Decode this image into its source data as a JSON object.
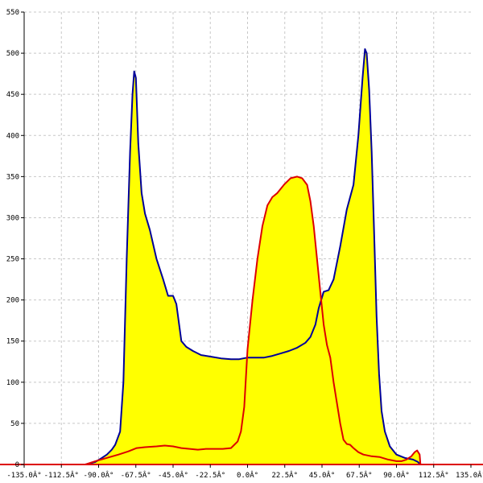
{
  "chart_data": {
    "type": "area",
    "xlim": [
      -135,
      135
    ],
    "ylim": [
      0,
      550
    ],
    "grid": true,
    "x_ticks": [
      -135,
      -112.5,
      -90,
      -67.5,
      -45,
      -22.5,
      0,
      22.5,
      45,
      67.5,
      90,
      112.5,
      135
    ],
    "x_tick_labels": [
      "-135.0Â°",
      "-112.5Â°",
      "-90.0Â°",
      "-67.5Â°",
      "-45.0Â°",
      "-22.5Â°",
      "0.0Â°",
      "22.5Â°",
      "45.0Â°",
      "67.5Â°",
      "90.0Â°",
      "112.5Â°",
      "135.0Â°"
    ],
    "y_ticks": [
      0,
      50,
      100,
      150,
      200,
      250,
      300,
      350,
      400,
      450,
      500,
      550
    ],
    "y_tick_labels": [
      "0",
      "50",
      "100",
      "150",
      "200",
      "250",
      "300",
      "350",
      "400",
      "450",
      "500",
      "550"
    ],
    "fill_color": "#ffff00",
    "series": [
      {
        "color": "#000099",
        "x": [
          -98,
          -92,
          -88,
          -85,
          -82,
          -80,
          -77,
          -75,
          -73,
          -71,
          -69.5,
          -68.5,
          -67.5,
          -66,
          -64,
          -62,
          -59,
          -55,
          -51,
          -48,
          -45,
          -43,
          -40,
          -37,
          -33,
          -28,
          -22,
          -16,
          -10,
          -5,
          0,
          5,
          10,
          15,
          20,
          25,
          30,
          35,
          38,
          41,
          43,
          46,
          49,
          52,
          56,
          60,
          64,
          67,
          69.5,
          71,
          72,
          73.5,
          75,
          76.5,
          78,
          79.5,
          81,
          83,
          86,
          90,
          95,
          100,
          103,
          104.5
        ],
        "y": [
          0,
          3,
          8,
          12,
          18,
          24,
          40,
          100,
          250,
          380,
          450,
          478,
          470,
          390,
          330,
          305,
          285,
          250,
          225,
          205,
          205,
          195,
          150,
          143,
          138,
          133,
          131,
          129,
          128,
          128,
          130,
          130,
          130,
          132,
          135,
          138,
          142,
          148,
          155,
          170,
          190,
          210,
          212,
          225,
          265,
          310,
          340,
          400,
          470,
          505,
          500,
          455,
          380,
          280,
          180,
          110,
          65,
          40,
          22,
          12,
          8,
          6,
          3,
          0
        ]
      },
      {
        "color": "#dd0000",
        "x": [
          -98,
          -92,
          -85,
          -78,
          -72,
          -67,
          -62,
          -55,
          -50,
          -45,
          -40,
          -35,
          -30,
          -25,
          -20,
          -15,
          -10,
          -8,
          -6,
          -4,
          -2,
          0,
          3,
          6,
          9,
          12,
          15,
          18,
          22,
          26,
          30,
          33,
          36,
          38,
          40,
          42,
          44,
          46,
          48,
          50,
          52,
          54,
          56,
          58,
          60,
          62,
          64,
          67,
          70,
          75,
          80,
          85,
          90,
          93,
          96,
          99,
          101,
          102.5,
          104,
          104.5
        ],
        "y": [
          0,
          4,
          8,
          12,
          16,
          20,
          21,
          22,
          23,
          22,
          20,
          19,
          18,
          19,
          19,
          19,
          20,
          24,
          28,
          40,
          70,
          140,
          200,
          250,
          290,
          315,
          325,
          330,
          340,
          348,
          350,
          348,
          340,
          320,
          290,
          250,
          210,
          170,
          145,
          130,
          100,
          75,
          50,
          30,
          25,
          24,
          20,
          15,
          12,
          10,
          9,
          6,
          4,
          4,
          6,
          10,
          15,
          17,
          12,
          0
        ]
      }
    ]
  }
}
